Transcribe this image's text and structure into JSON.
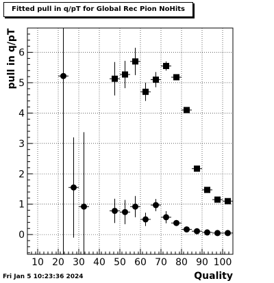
{
  "header": {
    "title": "Fitted pull in q/pT for Global Rec Pion NoHits"
  },
  "footer": {
    "timestamp": "Fri Jan  5 10:23:36 2024"
  },
  "chart_data": {
    "type": "scatter",
    "title": "Fitted pull in q/pT for Global Rec Pion NoHits",
    "xlabel": "Quality",
    "ylabel": "pull in q/pT",
    "xlim": [
      5,
      105
    ],
    "ylim": [
      -0.65,
      6.8
    ],
    "xticks": [
      10,
      20,
      30,
      40,
      50,
      60,
      70,
      80,
      90,
      100
    ],
    "yticks": [
      0,
      1,
      2,
      3,
      4,
      5,
      6
    ],
    "grid": true,
    "legend": "none",
    "series": [
      {
        "marker": "square",
        "color": "#000000",
        "points": [
          {
            "x": 47.5,
            "y": 5.13,
            "yerr": 0.55
          },
          {
            "x": 52.5,
            "y": 5.27,
            "yerr": 0.45
          },
          {
            "x": 57.5,
            "y": 5.7,
            "yerr": 0.45
          },
          {
            "x": 62.5,
            "y": 4.7,
            "yerr": 0.3
          },
          {
            "x": 67.5,
            "y": 5.1,
            "yerr": 0.25
          },
          {
            "x": 72.5,
            "y": 5.55,
            "yerr": 0.15
          },
          {
            "x": 77.5,
            "y": 5.18,
            "yerr": 0.1
          },
          {
            "x": 82.5,
            "y": 4.1,
            "yerr": 0.05
          },
          {
            "x": 87.5,
            "y": 2.17,
            "yerr": 0.03
          },
          {
            "x": 92.5,
            "y": 1.47,
            "yerr": 0.02
          },
          {
            "x": 97.5,
            "y": 1.15,
            "yerr": 0.02
          },
          {
            "x": 102.5,
            "y": 1.1,
            "yerr": 0.02
          }
        ]
      },
      {
        "marker": "circle",
        "color": "#000000",
        "points": [
          {
            "x": 22.5,
            "y": 5.22,
            "yerr": 6.0
          },
          {
            "x": 27.5,
            "y": 1.55,
            "yerr": 1.65
          },
          {
            "x": 32.5,
            "y": 0.92,
            "yerr": 2.45
          },
          {
            "x": 47.5,
            "y": 0.78,
            "yerr": 0.4
          },
          {
            "x": 52.5,
            "y": 0.74,
            "yerr": 0.4
          },
          {
            "x": 57.5,
            "y": 0.92,
            "yerr": 0.35
          },
          {
            "x": 62.5,
            "y": 0.5,
            "yerr": 0.22
          },
          {
            "x": 67.5,
            "y": 0.97,
            "yerr": 0.2
          },
          {
            "x": 72.5,
            "y": 0.57,
            "yerr": 0.2
          },
          {
            "x": 77.5,
            "y": 0.38,
            "yerr": 0.08
          },
          {
            "x": 82.5,
            "y": 0.17,
            "yerr": 0.04
          },
          {
            "x": 87.5,
            "y": 0.11,
            "yerr": 0.03
          },
          {
            "x": 92.5,
            "y": 0.07,
            "yerr": 0.02
          },
          {
            "x": 97.5,
            "y": 0.05,
            "yerr": 0.02
          },
          {
            "x": 102.5,
            "y": 0.05,
            "yerr": 0.02
          }
        ]
      }
    ]
  }
}
